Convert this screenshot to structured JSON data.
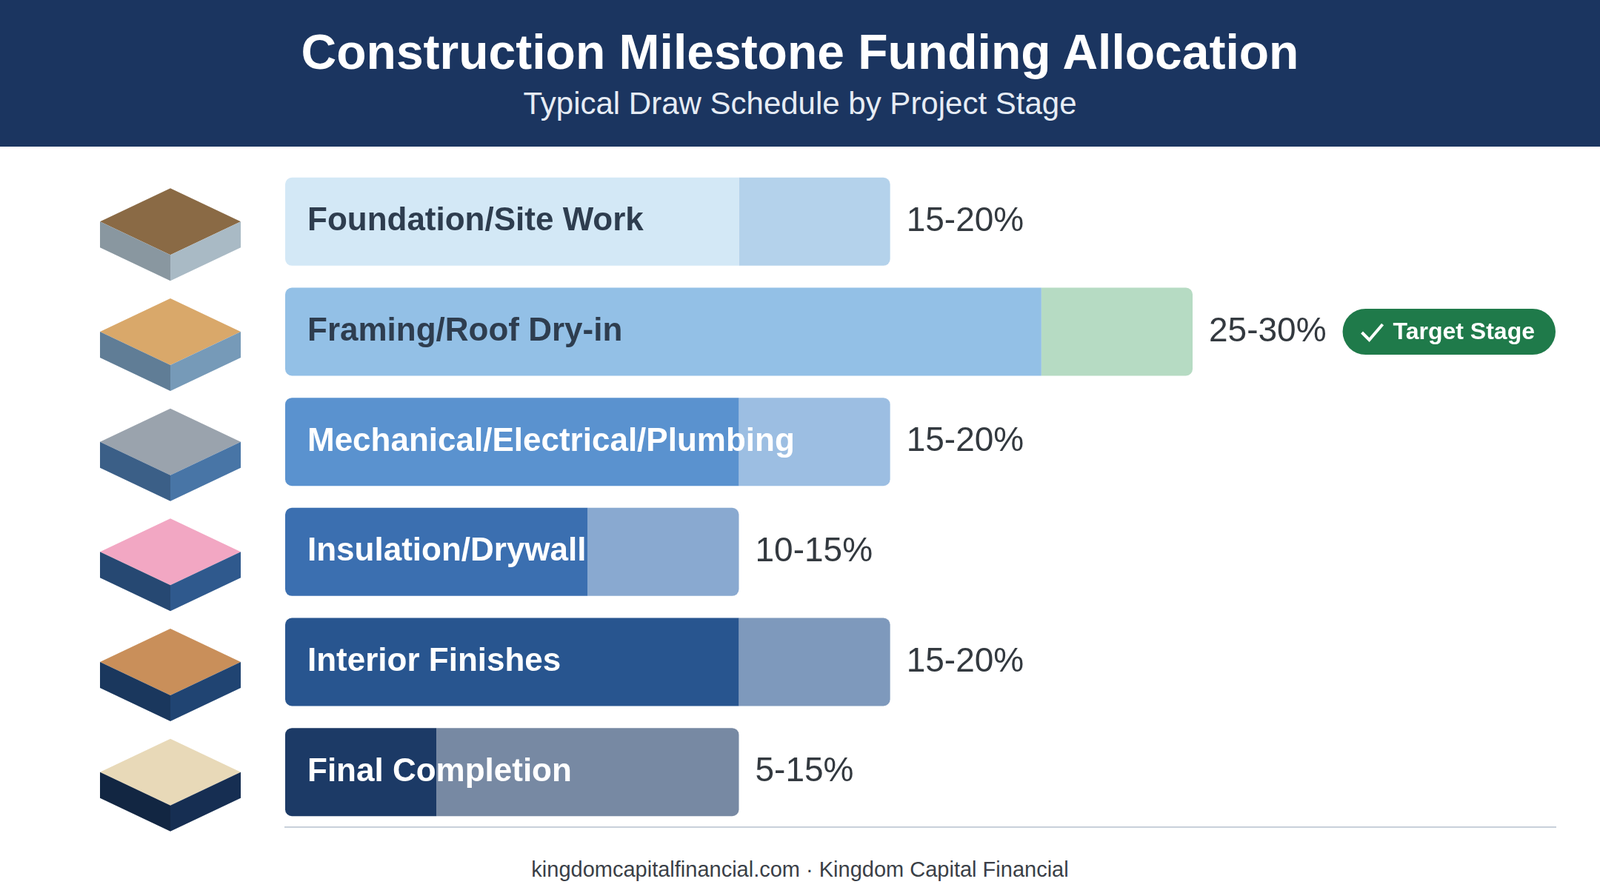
{
  "chart_data": {
    "type": "bar",
    "orientation": "horizontal",
    "title": "Construction Milestone Funding Allocation",
    "subtitle": "Typical Draw Schedule by Project Stage",
    "categories": [
      "Foundation/Site Work",
      "Framing/Roof Dry-in",
      "Mechanical/Electrical/Plumbing",
      "Insulation/Drywall",
      "Interior Finishes",
      "Final Completion"
    ],
    "values": [
      [
        15,
        20
      ],
      [
        25,
        30
      ],
      [
        15,
        20
      ],
      [
        10,
        15
      ],
      [
        15,
        20
      ],
      [
        5,
        15
      ]
    ],
    "value_labels": [
      "15-20%",
      "25-30%",
      "15-20%",
      "10-15%",
      "15-20%",
      "5-15%"
    ],
    "colors": [
      "#d3e8f6",
      "#93c0e6",
      "#5a92cf",
      "#3b6fb0",
      "#28558f",
      "#1c3a66"
    ],
    "xlim": [
      0,
      42
    ],
    "grid": false,
    "tick_labels": false,
    "data_labels": true,
    "annotations": [
      {
        "category": "Framing/Roof Dry-in",
        "text": "Target Stage"
      }
    ],
    "footer": "kingdomcapitalfinancial.com · Kingdom Capital Financial"
  }
}
